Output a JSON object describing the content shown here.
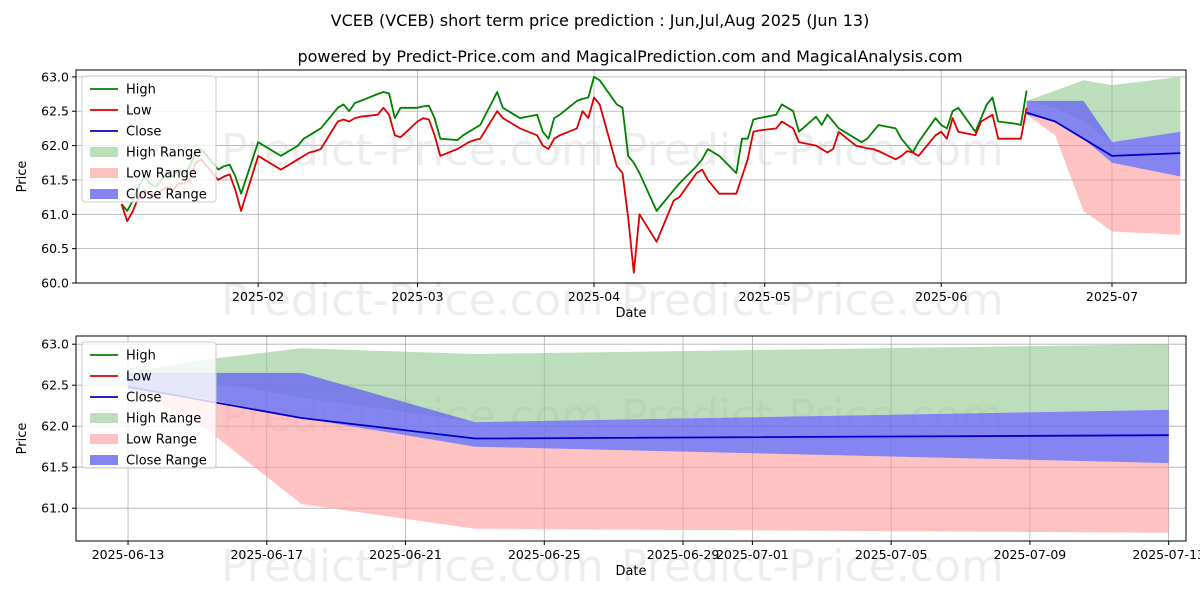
{
  "title": "VCEB (VCEB) short term price prediction : Jun,Jul,Aug 2025 (Jun 13)",
  "subtitle": "powered by Predict-Price.com and MagicalPrediction.com and MagicalAnalysis.com",
  "watermark": "Predict-Price.com",
  "colors": {
    "high": "#008000",
    "low": "#dd0000",
    "close": "#0000cc",
    "high_range": "#90c890",
    "low_range": "#ff9999",
    "close_range": "#7070ee"
  },
  "legend": [
    "High",
    "Low",
    "Close",
    "High Range",
    "Low Range",
    "Close Range"
  ],
  "chart_data": [
    {
      "type": "line",
      "xlabel": "Date",
      "ylabel": "Price",
      "ylim": [
        60.0,
        63.1
      ],
      "xlim": [
        -17,
        178
      ],
      "yticks": [
        "60.0",
        "60.5",
        "61.0",
        "61.5",
        "62.0",
        "62.5",
        "63.0"
      ],
      "yticks_values": [
        60.0,
        60.5,
        61.0,
        61.5,
        62.0,
        62.5,
        63.0
      ],
      "xticks": [
        "2025-02",
        "2025-03",
        "2025-04",
        "2025-05",
        "2025-06",
        "2025-07"
      ],
      "xticks_values": [
        15,
        43,
        74,
        104,
        135,
        165
      ],
      "legend_position": "upper-left",
      "series": [
        {
          "name": "High",
          "x": [
            -9,
            -8,
            -7,
            -6,
            -5,
            -4,
            -3,
            -2,
            -1,
            0,
            1,
            2,
            3,
            4,
            5,
            8,
            9,
            10,
            11,
            12,
            15,
            16,
            17,
            18,
            19,
            22,
            23,
            24,
            25,
            26,
            29,
            30,
            31,
            32,
            33,
            36,
            37,
            38,
            39,
            40,
            43,
            44,
            45,
            46,
            47,
            50,
            51,
            52,
            53,
            54,
            57,
            58,
            59,
            60,
            61,
            64,
            65,
            66,
            67,
            68,
            71,
            72,
            73,
            74,
            75,
            78,
            79,
            80,
            81,
            82,
            85,
            86,
            87,
            88,
            89,
            92,
            93,
            94,
            95,
            96,
            99,
            100,
            101,
            102,
            103,
            106,
            107,
            108,
            109,
            110,
            113,
            114,
            115,
            116,
            117,
            120,
            121,
            122,
            123,
            124,
            127,
            128,
            129,
            130,
            131,
            134,
            135,
            136,
            137,
            138,
            141,
            142,
            143,
            144,
            145,
            148,
            149,
            150
          ],
          "values": [
            61.15,
            61.05,
            61.2,
            61.4,
            61.55,
            61.45,
            61.4,
            61.5,
            61.6,
            61.55,
            61.65,
            61.6,
            61.7,
            61.9,
            61.95,
            61.65,
            61.7,
            61.72,
            61.55,
            61.3,
            62.05,
            62.0,
            61.95,
            61.9,
            61.85,
            62.0,
            62.1,
            62.15,
            62.2,
            62.25,
            62.55,
            62.6,
            62.5,
            62.62,
            62.65,
            62.75,
            62.78,
            62.76,
            62.4,
            62.55,
            62.55,
            62.57,
            62.58,
            62.4,
            62.1,
            62.08,
            62.15,
            62.2,
            62.25,
            62.3,
            62.78,
            62.55,
            62.5,
            62.45,
            62.4,
            62.45,
            62.2,
            62.1,
            62.4,
            62.45,
            62.65,
            62.68,
            62.7,
            63.0,
            62.95,
            62.6,
            62.55,
            61.85,
            61.75,
            61.6,
            61.05,
            61.15,
            61.25,
            61.35,
            61.45,
            61.7,
            61.8,
            61.95,
            61.9,
            61.85,
            61.6,
            62.1,
            62.1,
            62.38,
            62.4,
            62.45,
            62.6,
            62.55,
            62.5,
            62.2,
            62.42,
            62.3,
            62.45,
            62.35,
            62.25,
            62.1,
            62.05,
            62.1,
            62.2,
            62.3,
            62.25,
            62.1,
            62.0,
            61.9,
            62.05,
            62.4,
            62.3,
            62.25,
            62.5,
            62.55,
            62.2,
            62.4,
            62.6,
            62.7,
            62.35,
            62.32,
            62.3,
            62.8
          ]
        },
        {
          "name": "Low",
          "x": [
            -9,
            -8,
            -7,
            -6,
            -5,
            -4,
            -3,
            -2,
            -1,
            0,
            1,
            2,
            3,
            4,
            5,
            8,
            9,
            10,
            11,
            12,
            15,
            16,
            17,
            18,
            19,
            22,
            23,
            24,
            25,
            26,
            29,
            30,
            31,
            32,
            33,
            36,
            37,
            38,
            39,
            40,
            43,
            44,
            45,
            46,
            47,
            50,
            51,
            52,
            53,
            54,
            57,
            58,
            59,
            60,
            61,
            64,
            65,
            66,
            67,
            68,
            71,
            72,
            73,
            74,
            75,
            78,
            79,
            80,
            81,
            82,
            85,
            86,
            87,
            88,
            89,
            92,
            93,
            94,
            95,
            96,
            99,
            100,
            101,
            102,
            103,
            106,
            107,
            108,
            109,
            110,
            113,
            114,
            115,
            116,
            117,
            120,
            121,
            122,
            123,
            124,
            127,
            128,
            129,
            130,
            131,
            134,
            135,
            136,
            137,
            138,
            141,
            142,
            143,
            144,
            145,
            148,
            149,
            150
          ],
          "values": [
            61.15,
            60.9,
            61.05,
            61.25,
            61.35,
            61.3,
            61.25,
            61.35,
            61.4,
            61.35,
            61.45,
            61.45,
            61.5,
            61.75,
            61.8,
            61.5,
            61.55,
            61.58,
            61.35,
            61.05,
            61.85,
            61.8,
            61.75,
            61.7,
            61.65,
            61.8,
            61.85,
            61.9,
            61.92,
            61.95,
            62.35,
            62.38,
            62.35,
            62.4,
            62.42,
            62.45,
            62.55,
            62.45,
            62.15,
            62.12,
            62.35,
            62.4,
            62.38,
            62.15,
            61.85,
            61.95,
            62.0,
            62.05,
            62.08,
            62.1,
            62.5,
            62.4,
            62.35,
            62.3,
            62.25,
            62.15,
            62.0,
            61.95,
            62.1,
            62.15,
            62.25,
            62.5,
            62.4,
            62.7,
            62.6,
            61.7,
            61.6,
            60.95,
            60.15,
            61.0,
            60.6,
            60.8,
            61.0,
            61.2,
            61.25,
            61.6,
            61.65,
            61.5,
            61.4,
            61.3,
            61.3,
            61.55,
            61.8,
            62.2,
            62.22,
            62.25,
            62.35,
            62.3,
            62.25,
            62.05,
            62.0,
            61.95,
            61.9,
            61.95,
            62.2,
            62.0,
            61.98,
            61.96,
            61.95,
            61.92,
            61.8,
            61.85,
            61.92,
            61.9,
            61.85,
            62.15,
            62.2,
            62.1,
            62.4,
            62.2,
            62.15,
            62.35,
            62.4,
            62.45,
            62.1,
            62.1,
            62.1,
            62.55
          ]
        },
        {
          "name": "Close",
          "x": [
            150,
            155,
            160,
            165,
            177
          ],
          "values": [
            62.48,
            62.35,
            62.1,
            61.85,
            61.89
          ]
        }
      ],
      "ranges": [
        {
          "name": "High Range",
          "x": [
            150,
            155,
            160,
            165,
            177
          ],
          "lower": [
            62.65,
            62.55,
            62.35,
            62.05,
            62.2
          ],
          "upper": [
            62.65,
            62.8,
            62.95,
            62.88,
            63.0
          ]
        },
        {
          "name": "Low Range",
          "x": [
            150,
            155,
            160,
            165,
            177
          ],
          "lower": [
            62.45,
            62.15,
            61.05,
            60.75,
            60.7
          ],
          "upper": [
            62.45,
            62.35,
            62.1,
            61.75,
            61.55
          ]
        },
        {
          "name": "Close Range",
          "x": [
            150,
            155,
            160,
            165,
            177
          ],
          "lower": [
            62.45,
            62.35,
            62.1,
            61.75,
            61.55
          ],
          "upper": [
            62.65,
            62.65,
            62.65,
            62.05,
            62.2
          ]
        }
      ]
    },
    {
      "type": "line",
      "xlabel": "Date",
      "ylabel": "Price",
      "ylim": [
        60.6,
        63.1
      ],
      "xlim": [
        -1.5,
        30.5
      ],
      "yticks": [
        "61.0",
        "61.5",
        "62.0",
        "62.5",
        "63.0"
      ],
      "yticks_values": [
        61.0,
        61.5,
        62.0,
        62.5,
        63.0
      ],
      "xticks": [
        "2025-06-13",
        "2025-06-17",
        "2025-06-21",
        "2025-06-25",
        "2025-06-29",
        "2025-07-01",
        "2025-07-05",
        "2025-07-09",
        "2025-07-13"
      ],
      "xticks_values": [
        0,
        4,
        8,
        12,
        16,
        18,
        22,
        26,
        30
      ],
      "legend_position": "upper-left",
      "series": [
        {
          "name": "Close",
          "x": [
            0,
            5,
            10,
            30
          ],
          "values": [
            62.48,
            62.1,
            61.85,
            61.89
          ]
        }
      ],
      "ranges": [
        {
          "name": "High Range",
          "x": [
            0,
            2,
            5,
            10,
            30
          ],
          "lower": [
            62.65,
            62.57,
            62.35,
            62.05,
            62.2
          ],
          "upper": [
            62.65,
            62.8,
            62.95,
            62.88,
            63.0
          ]
        },
        {
          "name": "Low Range",
          "x": [
            0,
            2,
            5,
            10,
            30
          ],
          "lower": [
            62.45,
            62.05,
            61.05,
            60.75,
            60.7
          ],
          "upper": [
            62.45,
            62.35,
            62.1,
            61.75,
            61.55
          ]
        },
        {
          "name": "Close Range",
          "x": [
            0,
            2,
            5,
            10,
            30
          ],
          "lower": [
            62.45,
            62.35,
            62.1,
            61.75,
            61.55
          ],
          "upper": [
            62.65,
            62.65,
            62.65,
            62.05,
            62.2
          ]
        }
      ]
    }
  ]
}
